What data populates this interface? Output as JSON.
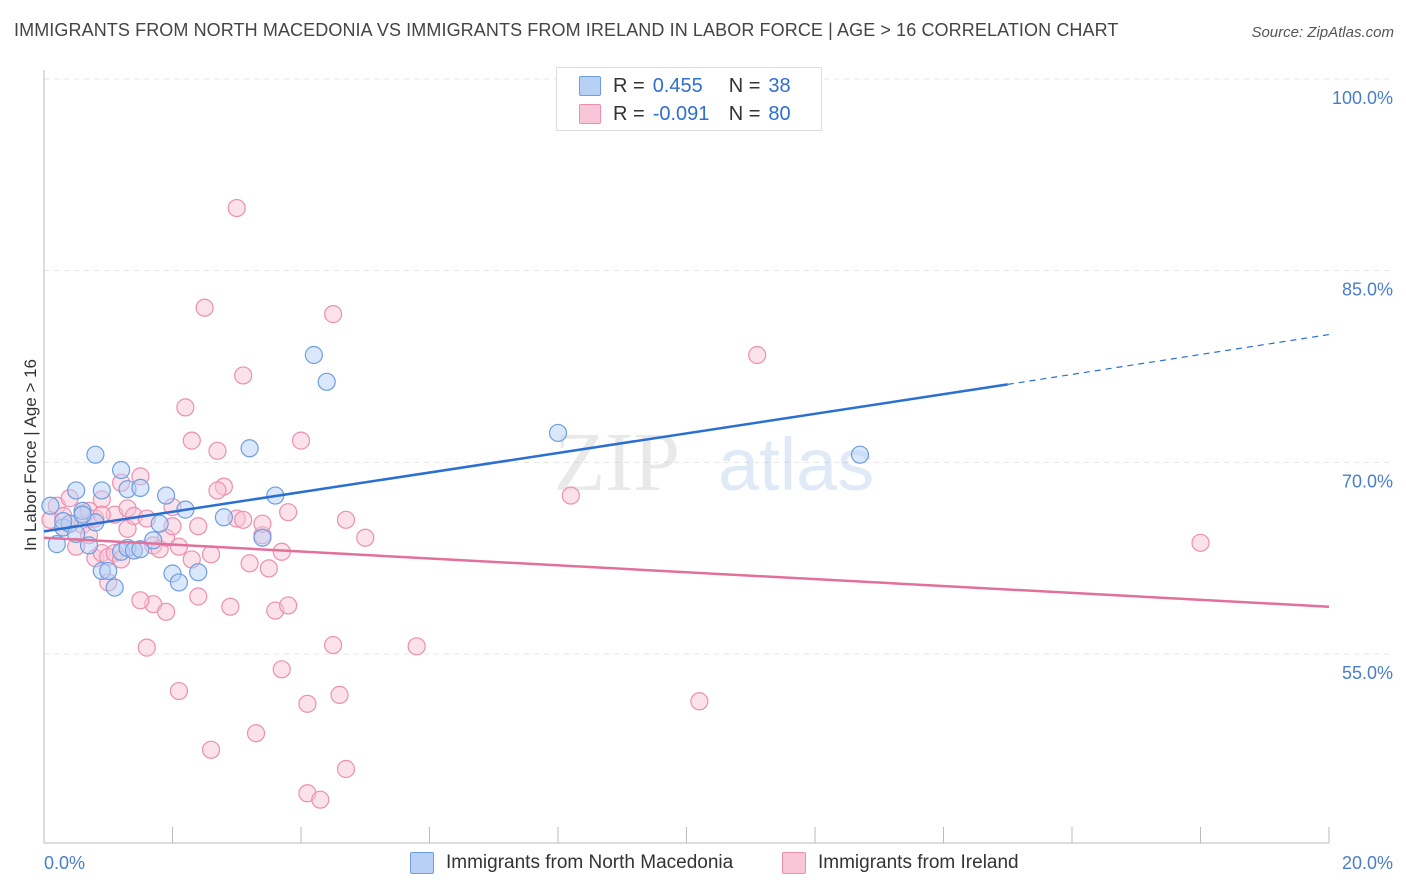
{
  "title": "IMMIGRANTS FROM NORTH MACEDONIA VS IMMIGRANTS FROM IRELAND IN LABOR FORCE | AGE > 16 CORRELATION CHART",
  "source": "Source: ZipAtlas.com",
  "watermark": {
    "zip": "ZIP",
    "atlas": "atlas"
  },
  "legend": {
    "r_label": "R =",
    "n_label": "N =",
    "rows": [
      {
        "r": "0.455",
        "n": "38"
      },
      {
        "r": "-0.091",
        "n": "80"
      }
    ]
  },
  "colors": {
    "blue_fill": "#b8d0f5",
    "blue_stroke": "#6f9ee0",
    "blue_line": "#2a6fd1",
    "pink_fill": "#f8c6d6",
    "pink_stroke": "#ec8fb0",
    "pink_line": "#e2709a",
    "tick_text": "#4a7ec9",
    "grid": "#e4e4e4"
  },
  "chart_data": {
    "type": "scatter",
    "title": "IMMIGRANTS FROM NORTH MACEDONIA VS IMMIGRANTS FROM IRELAND IN LABOR FORCE | AGE > 16 CORRELATION CHART",
    "xlabel": "",
    "ylabel": "In Labor Force | Age > 16",
    "xlim": [
      0,
      20
    ],
    "ylim": [
      40,
      102
    ],
    "x_tick_labels": [
      "0.0%",
      "20.0%"
    ],
    "y_ticks": [
      55,
      70,
      85,
      100
    ],
    "y_tick_labels": [
      "55.0%",
      "70.0%",
      "85.0%",
      "100.0%"
    ],
    "grid": true,
    "legend_position": "top-center",
    "series": [
      {
        "name": "Immigrants from North Macedonia",
        "color": "#b8d0f5",
        "points": [
          [
            0.1,
            66.6
          ],
          [
            0.2,
            63.6
          ],
          [
            0.3,
            64.9
          ],
          [
            0.4,
            65.2
          ],
          [
            0.5,
            64.4
          ],
          [
            0.5,
            67.8
          ],
          [
            0.6,
            66.2
          ],
          [
            0.7,
            63.5
          ],
          [
            0.8,
            70.6
          ],
          [
            0.8,
            65.3
          ],
          [
            0.9,
            61.5
          ],
          [
            0.9,
            67.8
          ],
          [
            1.0,
            61.5
          ],
          [
            1.1,
            60.2
          ],
          [
            1.2,
            63.0
          ],
          [
            1.2,
            69.4
          ],
          [
            1.3,
            67.9
          ],
          [
            1.3,
            63.3
          ],
          [
            1.4,
            63.1
          ],
          [
            1.5,
            68.0
          ],
          [
            1.7,
            63.9
          ],
          [
            1.8,
            65.2
          ],
          [
            1.9,
            67.4
          ],
          [
            2.0,
            61.3
          ],
          [
            2.1,
            60.6
          ],
          [
            2.2,
            66.3
          ],
          [
            2.4,
            61.4
          ],
          [
            2.8,
            65.7
          ],
          [
            3.2,
            71.1
          ],
          [
            3.4,
            64.1
          ],
          [
            3.6,
            67.4
          ],
          [
            4.2,
            78.4
          ],
          [
            4.4,
            76.3
          ],
          [
            8.0,
            72.3
          ],
          [
            12.7,
            70.6
          ],
          [
            0.3,
            65.4
          ],
          [
            0.6,
            65.9
          ],
          [
            1.5,
            63.2
          ]
        ]
      },
      {
        "name": "Immigrants from Ireland",
        "color": "#f8c6d6",
        "points": [
          [
            0.1,
            65.5
          ],
          [
            0.2,
            66.6
          ],
          [
            0.3,
            65.8
          ],
          [
            0.3,
            64.9
          ],
          [
            0.4,
            65.2
          ],
          [
            0.4,
            67.2
          ],
          [
            0.5,
            63.4
          ],
          [
            0.6,
            66.0
          ],
          [
            0.6,
            65.1
          ],
          [
            0.7,
            66.2
          ],
          [
            0.7,
            64.3
          ],
          [
            0.8,
            65.6
          ],
          [
            0.8,
            62.5
          ],
          [
            0.9,
            67.1
          ],
          [
            0.9,
            62.9
          ],
          [
            1.0,
            62.6
          ],
          [
            1.0,
            60.6
          ],
          [
            1.1,
            65.9
          ],
          [
            1.1,
            62.9
          ],
          [
            1.2,
            62.4
          ],
          [
            1.3,
            66.4
          ],
          [
            1.3,
            64.8
          ],
          [
            1.4,
            65.8
          ],
          [
            1.4,
            63.1
          ],
          [
            1.5,
            68.9
          ],
          [
            1.6,
            65.6
          ],
          [
            1.6,
            55.5
          ],
          [
            1.7,
            63.5
          ],
          [
            1.7,
            58.9
          ],
          [
            1.8,
            63.2
          ],
          [
            1.9,
            64.1
          ],
          [
            1.9,
            58.3
          ],
          [
            2.0,
            65.0
          ],
          [
            2.0,
            66.5
          ],
          [
            2.1,
            63.4
          ],
          [
            2.1,
            52.1
          ],
          [
            2.2,
            74.3
          ],
          [
            2.3,
            62.4
          ],
          [
            2.3,
            71.7
          ],
          [
            2.4,
            65.0
          ],
          [
            2.4,
            59.5
          ],
          [
            2.5,
            82.1
          ],
          [
            2.6,
            47.5
          ],
          [
            2.6,
            62.8
          ],
          [
            2.7,
            70.9
          ],
          [
            2.8,
            68.1
          ],
          [
            2.9,
            58.7
          ],
          [
            3.0,
            89.9
          ],
          [
            3.0,
            65.6
          ],
          [
            3.1,
            76.8
          ],
          [
            3.2,
            62.1
          ],
          [
            3.3,
            48.8
          ],
          [
            3.4,
            64.3
          ],
          [
            3.4,
            65.2
          ],
          [
            3.5,
            61.7
          ],
          [
            3.6,
            58.4
          ],
          [
            3.7,
            53.8
          ],
          [
            3.7,
            63.0
          ],
          [
            3.8,
            58.8
          ],
          [
            3.8,
            66.1
          ],
          [
            4.0,
            71.7
          ],
          [
            4.1,
            44.1
          ],
          [
            4.1,
            51.1
          ],
          [
            4.3,
            43.6
          ],
          [
            4.5,
            55.7
          ],
          [
            4.5,
            81.6
          ],
          [
            4.6,
            51.8
          ],
          [
            4.7,
            46.0
          ],
          [
            4.7,
            65.5
          ],
          [
            5.0,
            64.1
          ],
          [
            5.8,
            55.6
          ],
          [
            8.2,
            67.4
          ],
          [
            10.2,
            51.3
          ],
          [
            11.1,
            78.4
          ],
          [
            18.0,
            63.7
          ],
          [
            1.2,
            68.4
          ],
          [
            2.7,
            67.8
          ],
          [
            0.9,
            65.9
          ],
          [
            1.5,
            59.2
          ],
          [
            3.1,
            65.5
          ]
        ]
      }
    ],
    "trendlines": [
      {
        "series": "Immigrants from North Macedonia",
        "x1": 0,
        "y1": 64.6,
        "x2": 15.0,
        "y2": 76.1,
        "dashed_to_x": 20,
        "dashed_to_y": 80.0
      },
      {
        "series": "Immigrants from Ireland",
        "x1": 0,
        "y1": 64.1,
        "x2": 20,
        "y2": 58.7
      }
    ]
  }
}
